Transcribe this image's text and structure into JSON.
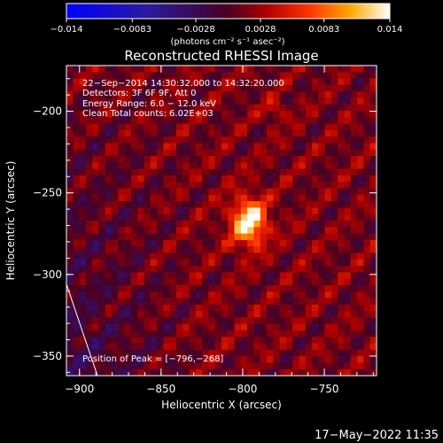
{
  "chart_data": {
    "type": "heatmap",
    "title": "Reconstructed RHESSI Image",
    "xlabel": "Heliocentric X (arcsec)",
    "ylabel": "Heliocentric Y (arcsec)",
    "xlim": [
      -908,
      -718
    ],
    "ylim": [
      -362,
      -172
    ],
    "x_ticks": [
      -900,
      -850,
      -800,
      -750
    ],
    "y_ticks": [
      -200,
      -250,
      -300,
      -350
    ],
    "x_tick_labels": [
      "−900",
      "−850",
      "−800",
      "−750"
    ],
    "y_tick_labels": [
      "−200",
      "−250",
      "−300",
      "−350"
    ],
    "colorbar": {
      "range": [
        -0.014,
        0.014
      ],
      "ticks": [
        -0.014,
        -0.0083,
        -0.0028,
        0.0028,
        0.0083,
        0.014
      ],
      "tick_labels": [
        "−0.014",
        "−0.0083",
        "−0.0028",
        "0.0028",
        "0.0083",
        "0.014"
      ],
      "units": "(photons cm⁻² s⁻¹ asec⁻²)"
    },
    "peak": [
      -796,
      -268
    ],
    "info_lines": [
      "22−Sep−2014 14:30:32.000 to 14:32:20.000",
      "Detectors: 3F 6F 9F, Att 0",
      "Energy Range: 6.0 − 12.0 keV",
      "Clean    Total counts: 6.02E+03"
    ],
    "peak_label": "Position of Peak = [−796,−268]",
    "limb_line": [
      [
        -908,
        -306
      ],
      [
        -889,
        -362
      ]
    ]
  },
  "footer": {
    "timestamp": "17−May−2022 11:35"
  }
}
